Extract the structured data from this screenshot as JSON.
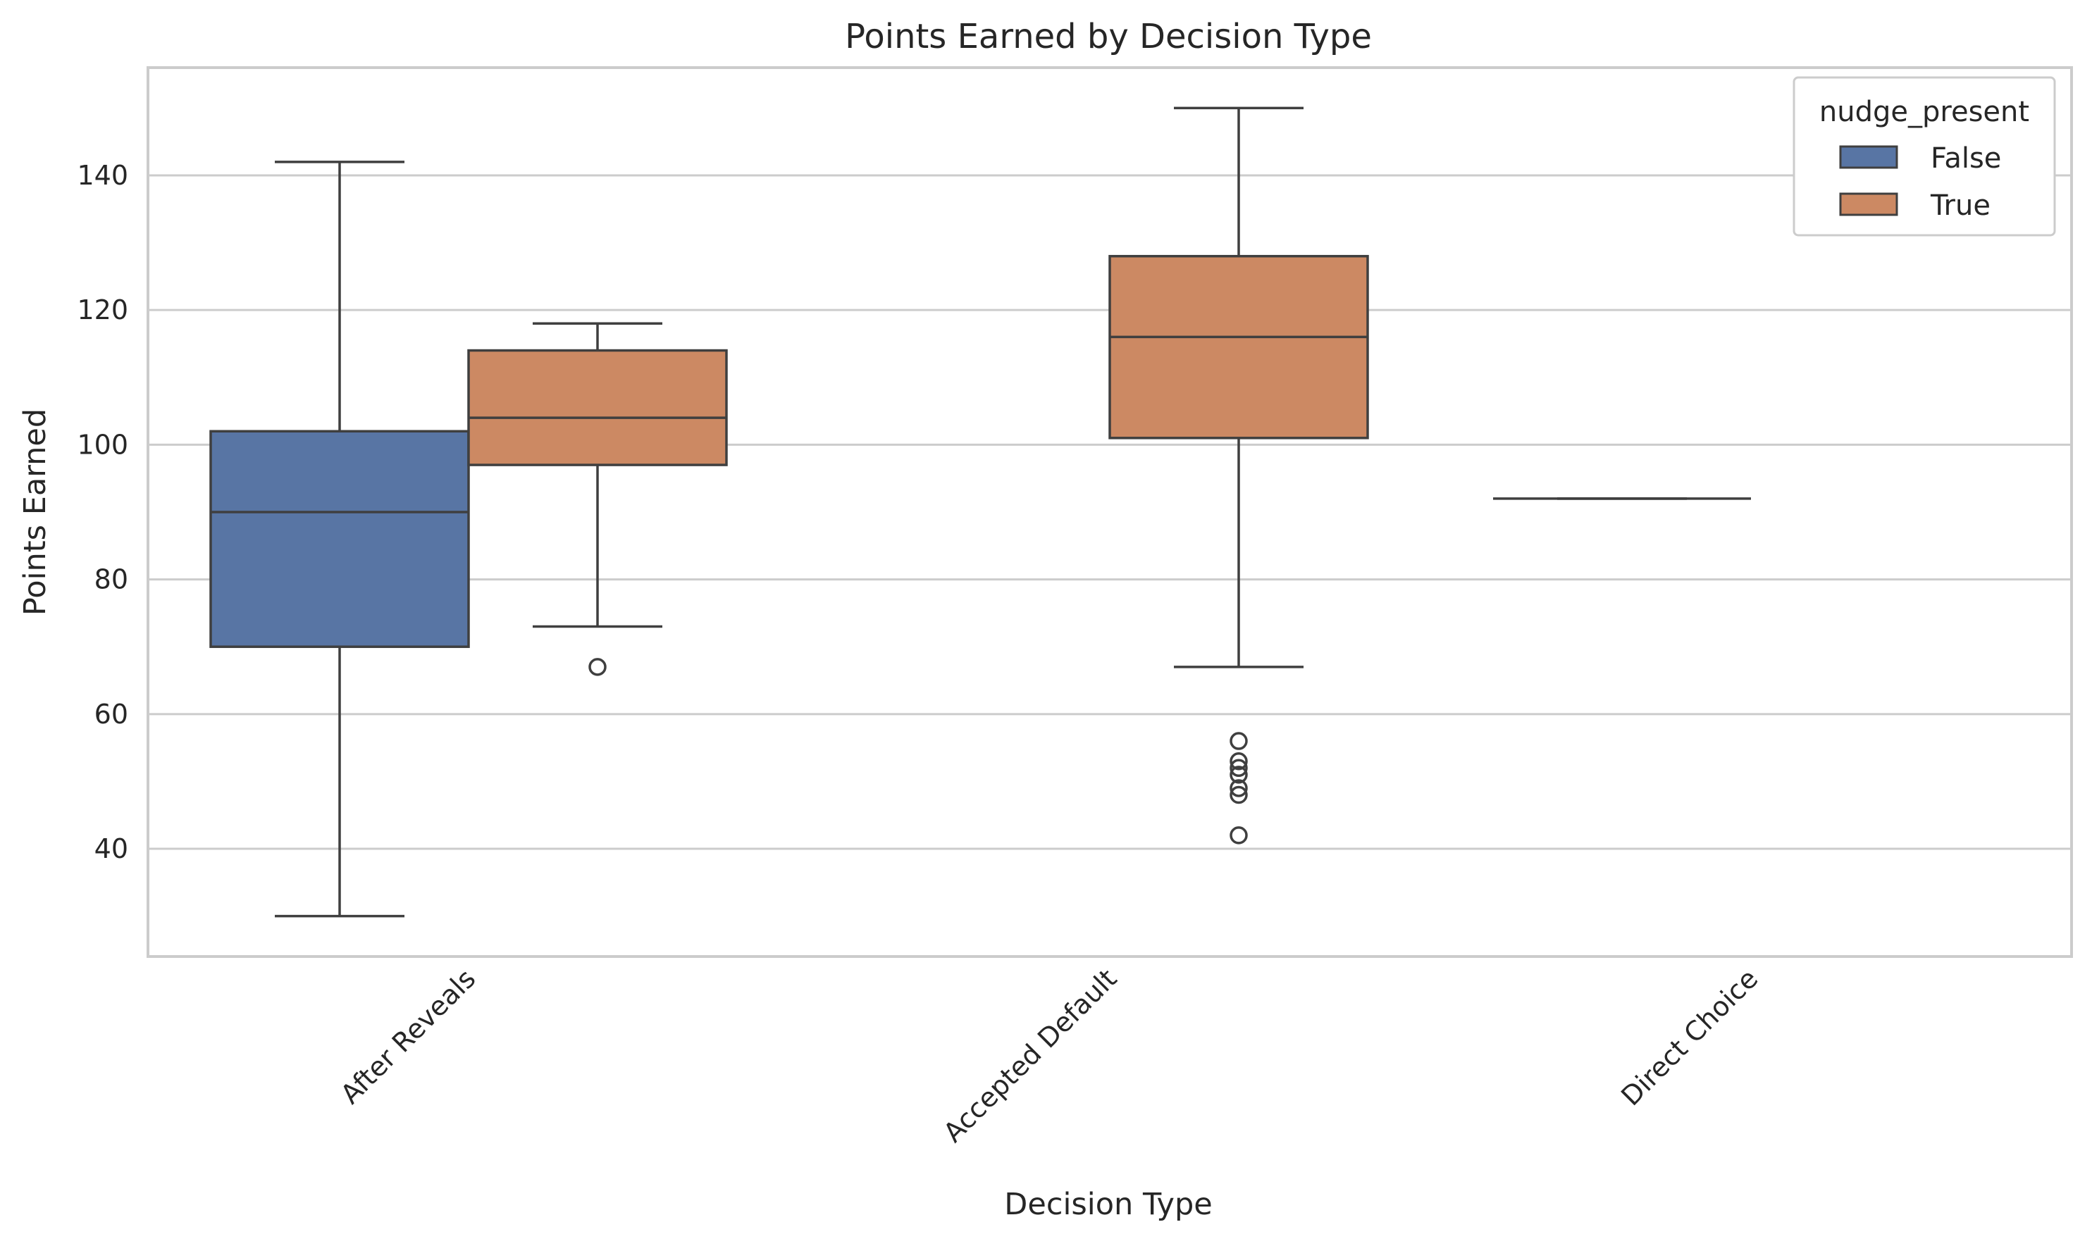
{
  "chart_data": {
    "type": "box",
    "title": "Points Earned by Decision Type",
    "xlabel": "Decision Type",
    "ylabel": "Points Earned",
    "categories": [
      "After Reveals",
      "Accepted Default",
      "Direct Choice"
    ],
    "ylim": [
      24,
      156
    ],
    "yticks": [
      40,
      60,
      80,
      100,
      120,
      140
    ],
    "grid": true,
    "legend": {
      "title": "nudge_present",
      "placement": "top-right",
      "entries": [
        {
          "label": "False",
          "color": "#5875a4"
        },
        {
          "label": "True",
          "color": "#cc8963"
        }
      ]
    },
    "series": [
      {
        "name": "False",
        "color": "#5875a4",
        "boxes": [
          {
            "category": "After Reveals",
            "whisker_low": 30,
            "q1": 70,
            "median": 90,
            "q3": 102,
            "whisker_high": 142,
            "outliers": []
          },
          {
            "category": "Direct Choice",
            "whisker_low": 92,
            "q1": 92,
            "median": 92,
            "q3": 92,
            "whisker_high": 92,
            "outliers": []
          }
        ]
      },
      {
        "name": "True",
        "color": "#cc8963",
        "boxes": [
          {
            "category": "After Reveals",
            "whisker_low": 73,
            "q1": 97,
            "median": 104,
            "q3": 114,
            "whisker_high": 118,
            "outliers": [
              67
            ]
          },
          {
            "category": "Accepted Default",
            "whisker_low": 67,
            "q1": 101,
            "median": 116,
            "q3": 128,
            "whisker_high": 150,
            "outliers": [
              56,
              53,
              52,
              51,
              49,
              48,
              42
            ]
          }
        ]
      }
    ]
  }
}
